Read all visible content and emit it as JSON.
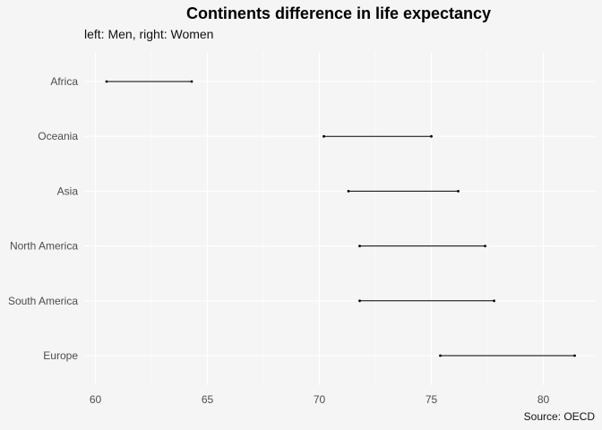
{
  "chart_data": {
    "type": "dumbbell",
    "title": "Continents difference in life expectancy",
    "subtitle": "left: Men, right: Women",
    "caption": "Source: OECD",
    "xlabel": "",
    "ylabel": "",
    "xlim": [
      59.5,
      82.3
    ],
    "x_ticks": [
      60,
      65,
      70,
      75,
      80
    ],
    "grid": true,
    "categories": [
      "Africa",
      "Oceania",
      "Asia",
      "North America",
      "South America",
      "Europe"
    ],
    "series": [
      {
        "values": [
          60.5,
          70.2,
          71.3,
          71.8,
          71.8,
          75.4
        ]
      },
      {
        "values": [
          64.3,
          75.0,
          76.2,
          77.4,
          77.8,
          81.4
        ]
      }
    ],
    "colors": {
      "background": "#f5f5f5",
      "grid": "#ffffff",
      "segment": "#000000",
      "tick_text": "#4d4d4d"
    }
  }
}
